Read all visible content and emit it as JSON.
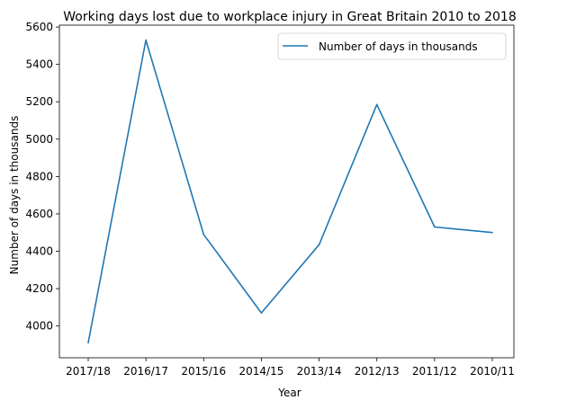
{
  "chart_data": {
    "type": "line",
    "title": "Working days lost due to workplace injury in Great Britain 2010 to 2018",
    "xlabel": "Year",
    "ylabel": "Number of days in thousands",
    "categories": [
      "2017/18",
      "2016/17",
      "2015/16",
      "2014/15",
      "2013/14",
      "2012/13",
      "2011/12",
      "2010/11"
    ],
    "series": [
      {
        "name": "Number of days in thousands",
        "values": [
          3910,
          5530,
          4490,
          4070,
          4435,
          5185,
          4530,
          4500
        ],
        "color": "#1f77b4"
      }
    ],
    "yticks": [
      4000,
      4200,
      4400,
      4600,
      4800,
      5000,
      5200,
      5400,
      5600
    ],
    "ylim": [
      3830,
      5610
    ],
    "grid": false,
    "legend_position": "upper right"
  }
}
